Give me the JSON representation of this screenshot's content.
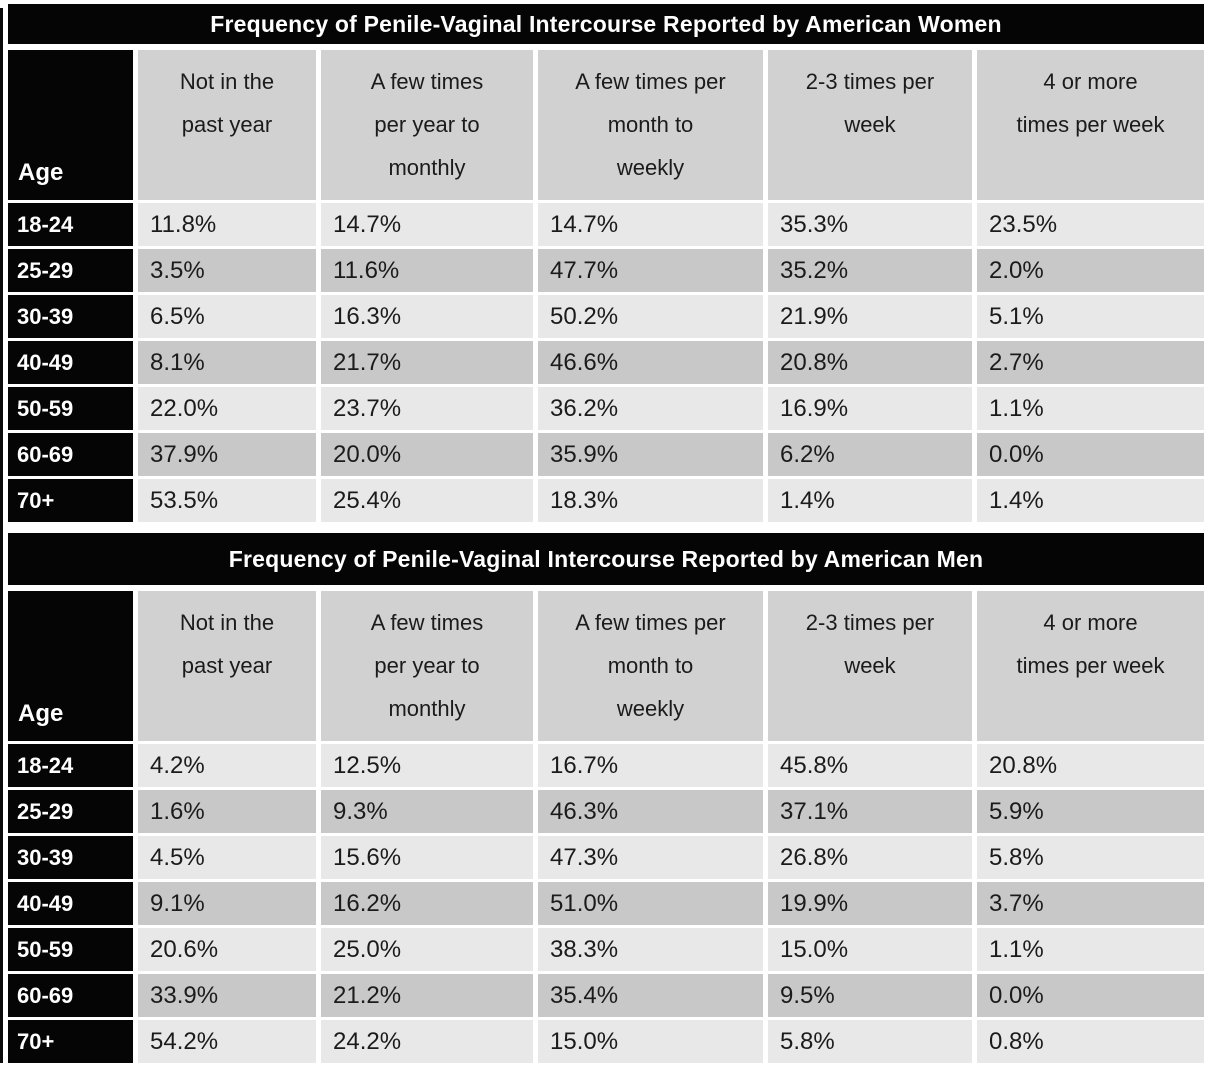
{
  "page": {
    "background": "#ffffff",
    "colors": {
      "title_bar": "#050505",
      "title_text": "#ffffff",
      "header_cell": "#d1d1d1",
      "row_light": "#e8e8e8",
      "row_dark": "#c8c8c8",
      "age_cell": "#050505",
      "data_text": "#1b1b1b"
    }
  },
  "tables": [
    {
      "title": "Frequency of Penile-Vaginal Intercourse Reported by American Women",
      "age_header": "Age",
      "columns": [
        "Not in the\npast year",
        "A few times\nper year to\nmonthly",
        "A few times per\nmonth to\nweekly",
        "2-3 times per\nweek",
        "4 or more\ntimes per week"
      ],
      "rows": [
        {
          "age": "18-24",
          "values": [
            "11.8%",
            "14.7%",
            "14.7%",
            "35.3%",
            "23.5%"
          ]
        },
        {
          "age": "25-29",
          "values": [
            "3.5%",
            "11.6%",
            "47.7%",
            "35.2%",
            "2.0%"
          ]
        },
        {
          "age": "30-39",
          "values": [
            "6.5%",
            "16.3%",
            "50.2%",
            "21.9%",
            "5.1%"
          ]
        },
        {
          "age": "40-49",
          "values": [
            "8.1%",
            "21.7%",
            "46.6%",
            "20.8%",
            "2.7%"
          ]
        },
        {
          "age": "50-59",
          "values": [
            "22.0%",
            "23.7%",
            "36.2%",
            "16.9%",
            "1.1%"
          ]
        },
        {
          "age": "60-69",
          "values": [
            "37.9%",
            "20.0%",
            "35.9%",
            "6.2%",
            "0.0%"
          ]
        },
        {
          "age": "70+",
          "values": [
            "53.5%",
            "25.4%",
            "18.3%",
            "1.4%",
            "1.4%"
          ]
        }
      ]
    },
    {
      "title": "Frequency of Penile-Vaginal Intercourse Reported by American Men",
      "age_header": "Age",
      "columns": [
        "Not in the\npast year",
        "A few times\nper year to\nmonthly",
        "A few times per\nmonth to\nweekly",
        "2-3 times per\nweek",
        "4 or more\ntimes per week"
      ],
      "rows": [
        {
          "age": "18-24",
          "values": [
            "4.2%",
            "12.5%",
            "16.7%",
            "45.8%",
            "20.8%"
          ]
        },
        {
          "age": "25-29",
          "values": [
            "1.6%",
            "9.3%",
            "46.3%",
            "37.1%",
            "5.9%"
          ]
        },
        {
          "age": "30-39",
          "values": [
            "4.5%",
            "15.6%",
            "47.3%",
            "26.8%",
            "5.8%"
          ]
        },
        {
          "age": "40-49",
          "values": [
            "9.1%",
            "16.2%",
            "51.0%",
            "19.9%",
            "3.7%"
          ]
        },
        {
          "age": "50-59",
          "values": [
            "20.6%",
            "25.0%",
            "38.3%",
            "15.0%",
            "1.1%"
          ]
        },
        {
          "age": "60-69",
          "values": [
            "33.9%",
            "21.2%",
            "35.4%",
            "9.5%",
            "0.0%"
          ]
        },
        {
          "age": "70+",
          "values": [
            "54.2%",
            "24.2%",
            "15.0%",
            "5.8%",
            "0.8%"
          ]
        }
      ]
    }
  ],
  "chart_data": [
    {
      "type": "table",
      "title": "Frequency of Penile-Vaginal Intercourse Reported by American Women",
      "row_label": "Age",
      "columns": [
        "Not in the past year",
        "A few times per year to monthly",
        "A few times per month to weekly",
        "2-3 times per week",
        "4 or more times per week"
      ],
      "unit": "percent",
      "rows": [
        {
          "age": "18-24",
          "values": [
            11.8,
            14.7,
            14.7,
            35.3,
            23.5
          ]
        },
        {
          "age": "25-29",
          "values": [
            3.5,
            11.6,
            47.7,
            35.2,
            2.0
          ]
        },
        {
          "age": "30-39",
          "values": [
            6.5,
            16.3,
            50.2,
            21.9,
            5.1
          ]
        },
        {
          "age": "40-49",
          "values": [
            8.1,
            21.7,
            46.6,
            20.8,
            2.7
          ]
        },
        {
          "age": "50-59",
          "values": [
            22.0,
            23.7,
            36.2,
            16.9,
            1.1
          ]
        },
        {
          "age": "60-69",
          "values": [
            37.9,
            20.0,
            35.9,
            6.2,
            0.0
          ]
        },
        {
          "age": "70+",
          "values": [
            53.5,
            25.4,
            18.3,
            1.4,
            1.4
          ]
        }
      ]
    },
    {
      "type": "table",
      "title": "Frequency of Penile-Vaginal Intercourse Reported by American Men",
      "row_label": "Age",
      "columns": [
        "Not in the past year",
        "A few times per year to monthly",
        "A few times per month to weekly",
        "2-3 times per week",
        "4 or more times per week"
      ],
      "unit": "percent",
      "rows": [
        {
          "age": "18-24",
          "values": [
            4.2,
            12.5,
            16.7,
            45.8,
            20.8
          ]
        },
        {
          "age": "25-29",
          "values": [
            1.6,
            9.3,
            46.3,
            37.1,
            5.9
          ]
        },
        {
          "age": "30-39",
          "values": [
            4.5,
            15.6,
            47.3,
            26.8,
            5.8
          ]
        },
        {
          "age": "40-49",
          "values": [
            9.1,
            16.2,
            51.0,
            19.9,
            3.7
          ]
        },
        {
          "age": "50-59",
          "values": [
            20.6,
            25.0,
            38.3,
            15.0,
            1.1
          ]
        },
        {
          "age": "60-69",
          "values": [
            33.9,
            21.2,
            35.4,
            9.5,
            0.0
          ]
        },
        {
          "age": "70+",
          "values": [
            54.2,
            24.2,
            15.0,
            5.8,
            0.8
          ]
        }
      ]
    }
  ]
}
